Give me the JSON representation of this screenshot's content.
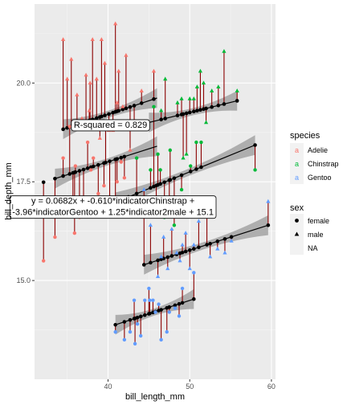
{
  "chart_data": {
    "type": "scatter",
    "xlabel": "bill_length_mm",
    "ylabel": "bill_depth_mm",
    "xlim": [
      31,
      60.5
    ],
    "ylim": [
      12.5,
      22.0
    ],
    "x_ticks": [
      40,
      50,
      60
    ],
    "x_tick_labels": [
      "40",
      "50",
      "60"
    ],
    "y_ticks": [
      15.0,
      17.5,
      20.0
    ],
    "y_tick_labels": [
      "15.0",
      "17.5",
      "20.0"
    ],
    "grid": true,
    "legend_position": "right",
    "colors": {
      "Adelie": "#F8766D",
      "Chinstrap": "#00BA38",
      "Gentoo": "#619CFF",
      "segment": "#8B0000",
      "fit": "#000000",
      "band": "#999999",
      "panel": "#EBEBEB"
    },
    "legend_species": {
      "title": "species",
      "entries": [
        {
          "label": "Adelie",
          "key": "Adelie"
        },
        {
          "label": "Chinstrap",
          "key": "Chinstrap"
        },
        {
          "label": "Gentoo",
          "key": "Gentoo"
        }
      ]
    },
    "legend_sex": {
      "title": "sex",
      "entries": [
        {
          "label": "female",
          "shape": "circle"
        },
        {
          "label": "male",
          "shape": "triangle"
        },
        {
          "label": "NA",
          "shape": "none"
        }
      ]
    },
    "fit_lines": [
      {
        "group": "Adelie female",
        "x": [
          33.5,
          46.0
        ],
        "y": [
          17.58,
          18.4
        ]
      },
      {
        "group": "Adelie male",
        "x": [
          34.5,
          46.0
        ],
        "y": [
          18.83,
          19.62
        ]
      },
      {
        "group": "Chinstrap female",
        "x": [
          40.9,
          58.0
        ],
        "y": [
          16.98,
          18.43
        ]
      },
      {
        "group": "Chinstrap male",
        "x": [
          45.0,
          55.8
        ],
        "y": [
          19.0,
          19.55
        ]
      },
      {
        "group": "Gentoo female",
        "x": [
          40.9,
          50.5
        ],
        "y": [
          13.88,
          14.53
        ]
      },
      {
        "group": "Gentoo male",
        "x": [
          44.4,
          59.6
        ],
        "y": [
          15.4,
          16.4
        ]
      }
    ],
    "annotations": [
      {
        "text_lines": [
          "R-squared = 0.829"
        ],
        "x": 40.3,
        "y": 18.95
      },
      {
        "text_lines": [
          "y = 0.0682x + -0.610*indicatorChinstrap +",
          "-3.96*indicatorGentoo + 1.25*indicator2male + 15.1"
        ],
        "x": 40.6,
        "y": 16.88
      }
    ],
    "series": [
      {
        "species": "Adelie",
        "sex": "male",
        "points": [
          {
            "x": 34.5,
            "y": 21.1
          },
          {
            "x": 35.0,
            "y": 20.1
          },
          {
            "x": 35.5,
            "y": 20.6
          },
          {
            "x": 36.2,
            "y": 19.7
          },
          {
            "x": 36.8,
            "y": 19.1
          },
          {
            "x": 37.3,
            "y": 20.2
          },
          {
            "x": 37.7,
            "y": 19.3
          },
          {
            "x": 38.1,
            "y": 21.1
          },
          {
            "x": 38.6,
            "y": 20.1
          },
          {
            "x": 39.0,
            "y": 18.6
          },
          {
            "x": 39.2,
            "y": 21.1
          },
          {
            "x": 39.6,
            "y": 20.5
          },
          {
            "x": 40.1,
            "y": 18.8
          },
          {
            "x": 40.6,
            "y": 18.8
          },
          {
            "x": 40.9,
            "y": 21.5
          },
          {
            "x": 41.1,
            "y": 19.5
          },
          {
            "x": 41.3,
            "y": 20.3
          },
          {
            "x": 41.8,
            "y": 19.4
          },
          {
            "x": 42.2,
            "y": 20.7
          },
          {
            "x": 42.7,
            "y": 18.3
          },
          {
            "x": 43.2,
            "y": 19.0
          },
          {
            "x": 44.1,
            "y": 19.8
          },
          {
            "x": 45.6,
            "y": 20.3
          },
          {
            "x": 37.8,
            "y": 20.0
          }
        ]
      },
      {
        "species": "Adelie",
        "sex": "female",
        "points": [
          {
            "x": 32.1,
            "y": 15.5
          },
          {
            "x": 33.5,
            "y": 16.1
          },
          {
            "x": 34.5,
            "y": 18.1
          },
          {
            "x": 35.3,
            "y": 18.9
          },
          {
            "x": 35.7,
            "y": 17.0
          },
          {
            "x": 36.0,
            "y": 17.9
          },
          {
            "x": 36.5,
            "y": 16.6
          },
          {
            "x": 37.0,
            "y": 16.9
          },
          {
            "x": 37.5,
            "y": 18.5
          },
          {
            "x": 37.9,
            "y": 17.8
          },
          {
            "x": 38.2,
            "y": 18.1
          },
          {
            "x": 38.8,
            "y": 17.2
          },
          {
            "x": 39.5,
            "y": 17.4
          },
          {
            "x": 40.2,
            "y": 17.0
          },
          {
            "x": 40.9,
            "y": 16.8
          },
          {
            "x": 41.1,
            "y": 17.5
          },
          {
            "x": 41.6,
            "y": 18.0
          },
          {
            "x": 42.0,
            "y": 17.6
          },
          {
            "x": 35.9,
            "y": 16.2
          },
          {
            "x": 39.7,
            "y": 18.9
          }
        ]
      },
      {
        "species": "Chinstrap",
        "sex": "male",
        "points": [
          {
            "x": 46.5,
            "y": 19.3
          },
          {
            "x": 47.0,
            "y": 20.1
          },
          {
            "x": 48.5,
            "y": 19.5
          },
          {
            "x": 49.0,
            "y": 19.6
          },
          {
            "x": 49.6,
            "y": 18.2
          },
          {
            "x": 50.0,
            "y": 19.6
          },
          {
            "x": 50.5,
            "y": 19.6
          },
          {
            "x": 50.9,
            "y": 19.9
          },
          {
            "x": 51.3,
            "y": 20.3
          },
          {
            "x": 51.7,
            "y": 20.0
          },
          {
            "x": 52.0,
            "y": 19.0
          },
          {
            "x": 52.7,
            "y": 19.8
          },
          {
            "x": 53.5,
            "y": 19.9
          },
          {
            "x": 54.2,
            "y": 20.8
          },
          {
            "x": 55.8,
            "y": 19.8
          },
          {
            "x": 49.2,
            "y": 18.1
          }
        ]
      },
      {
        "species": "Chinstrap",
        "sex": "female",
        "points": [
          {
            "x": 42.5,
            "y": 16.7
          },
          {
            "x": 43.5,
            "y": 18.1
          },
          {
            "x": 45.2,
            "y": 17.8
          },
          {
            "x": 45.9,
            "y": 17.1
          },
          {
            "x": 46.4,
            "y": 17.8
          },
          {
            "x": 46.9,
            "y": 16.6
          },
          {
            "x": 47.5,
            "y": 16.8
          },
          {
            "x": 48.1,
            "y": 16.4
          },
          {
            "x": 49.0,
            "y": 17.3
          },
          {
            "x": 50.1,
            "y": 17.9
          },
          {
            "x": 50.8,
            "y": 18.5
          },
          {
            "x": 51.4,
            "y": 18.5
          },
          {
            "x": 45.6,
            "y": 19.4
          },
          {
            "x": 58.0,
            "y": 17.8
          },
          {
            "x": 46.1,
            "y": 18.2
          },
          {
            "x": 47.6,
            "y": 18.3
          }
        ]
      },
      {
        "species": "Gentoo",
        "sex": "male",
        "points": [
          {
            "x": 44.4,
            "y": 17.3
          },
          {
            "x": 45.2,
            "y": 16.4
          },
          {
            "x": 46.1,
            "y": 15.1
          },
          {
            "x": 46.8,
            "y": 16.1
          },
          {
            "x": 47.3,
            "y": 15.3
          },
          {
            "x": 47.8,
            "y": 16.3
          },
          {
            "x": 48.4,
            "y": 15.7
          },
          {
            "x": 49.1,
            "y": 15.9
          },
          {
            "x": 49.5,
            "y": 16.2
          },
          {
            "x": 50.0,
            "y": 15.3
          },
          {
            "x": 50.5,
            "y": 15.9
          },
          {
            "x": 51.1,
            "y": 16.5
          },
          {
            "x": 52.1,
            "y": 17.0
          },
          {
            "x": 52.5,
            "y": 15.6
          },
          {
            "x": 53.4,
            "y": 15.8
          },
          {
            "x": 54.3,
            "y": 15.7
          },
          {
            "x": 55.1,
            "y": 16.0
          },
          {
            "x": 59.6,
            "y": 17.0
          },
          {
            "x": 48.8,
            "y": 15.5
          },
          {
            "x": 46.5,
            "y": 15.6
          }
        ]
      },
      {
        "species": "Gentoo",
        "sex": "female",
        "points": [
          {
            "x": 40.9,
            "y": 13.7
          },
          {
            "x": 42.0,
            "y": 13.5
          },
          {
            "x": 42.7,
            "y": 13.7
          },
          {
            "x": 43.2,
            "y": 14.5
          },
          {
            "x": 43.6,
            "y": 13.9
          },
          {
            "x": 44.0,
            "y": 13.6
          },
          {
            "x": 44.5,
            "y": 14.5
          },
          {
            "x": 45.1,
            "y": 14.5
          },
          {
            "x": 45.5,
            "y": 14.5
          },
          {
            "x": 45.8,
            "y": 14.2
          },
          {
            "x": 46.2,
            "y": 14.4
          },
          {
            "x": 46.5,
            "y": 13.5
          },
          {
            "x": 47.2,
            "y": 13.7
          },
          {
            "x": 47.5,
            "y": 14.2
          },
          {
            "x": 48.2,
            "y": 14.3
          },
          {
            "x": 48.7,
            "y": 14.1
          },
          {
            "x": 49.1,
            "y": 14.8
          },
          {
            "x": 50.5,
            "y": 15.2
          },
          {
            "x": 43.3,
            "y": 13.4
          },
          {
            "x": 45.0,
            "y": 14.8
          }
        ]
      }
    ]
  }
}
